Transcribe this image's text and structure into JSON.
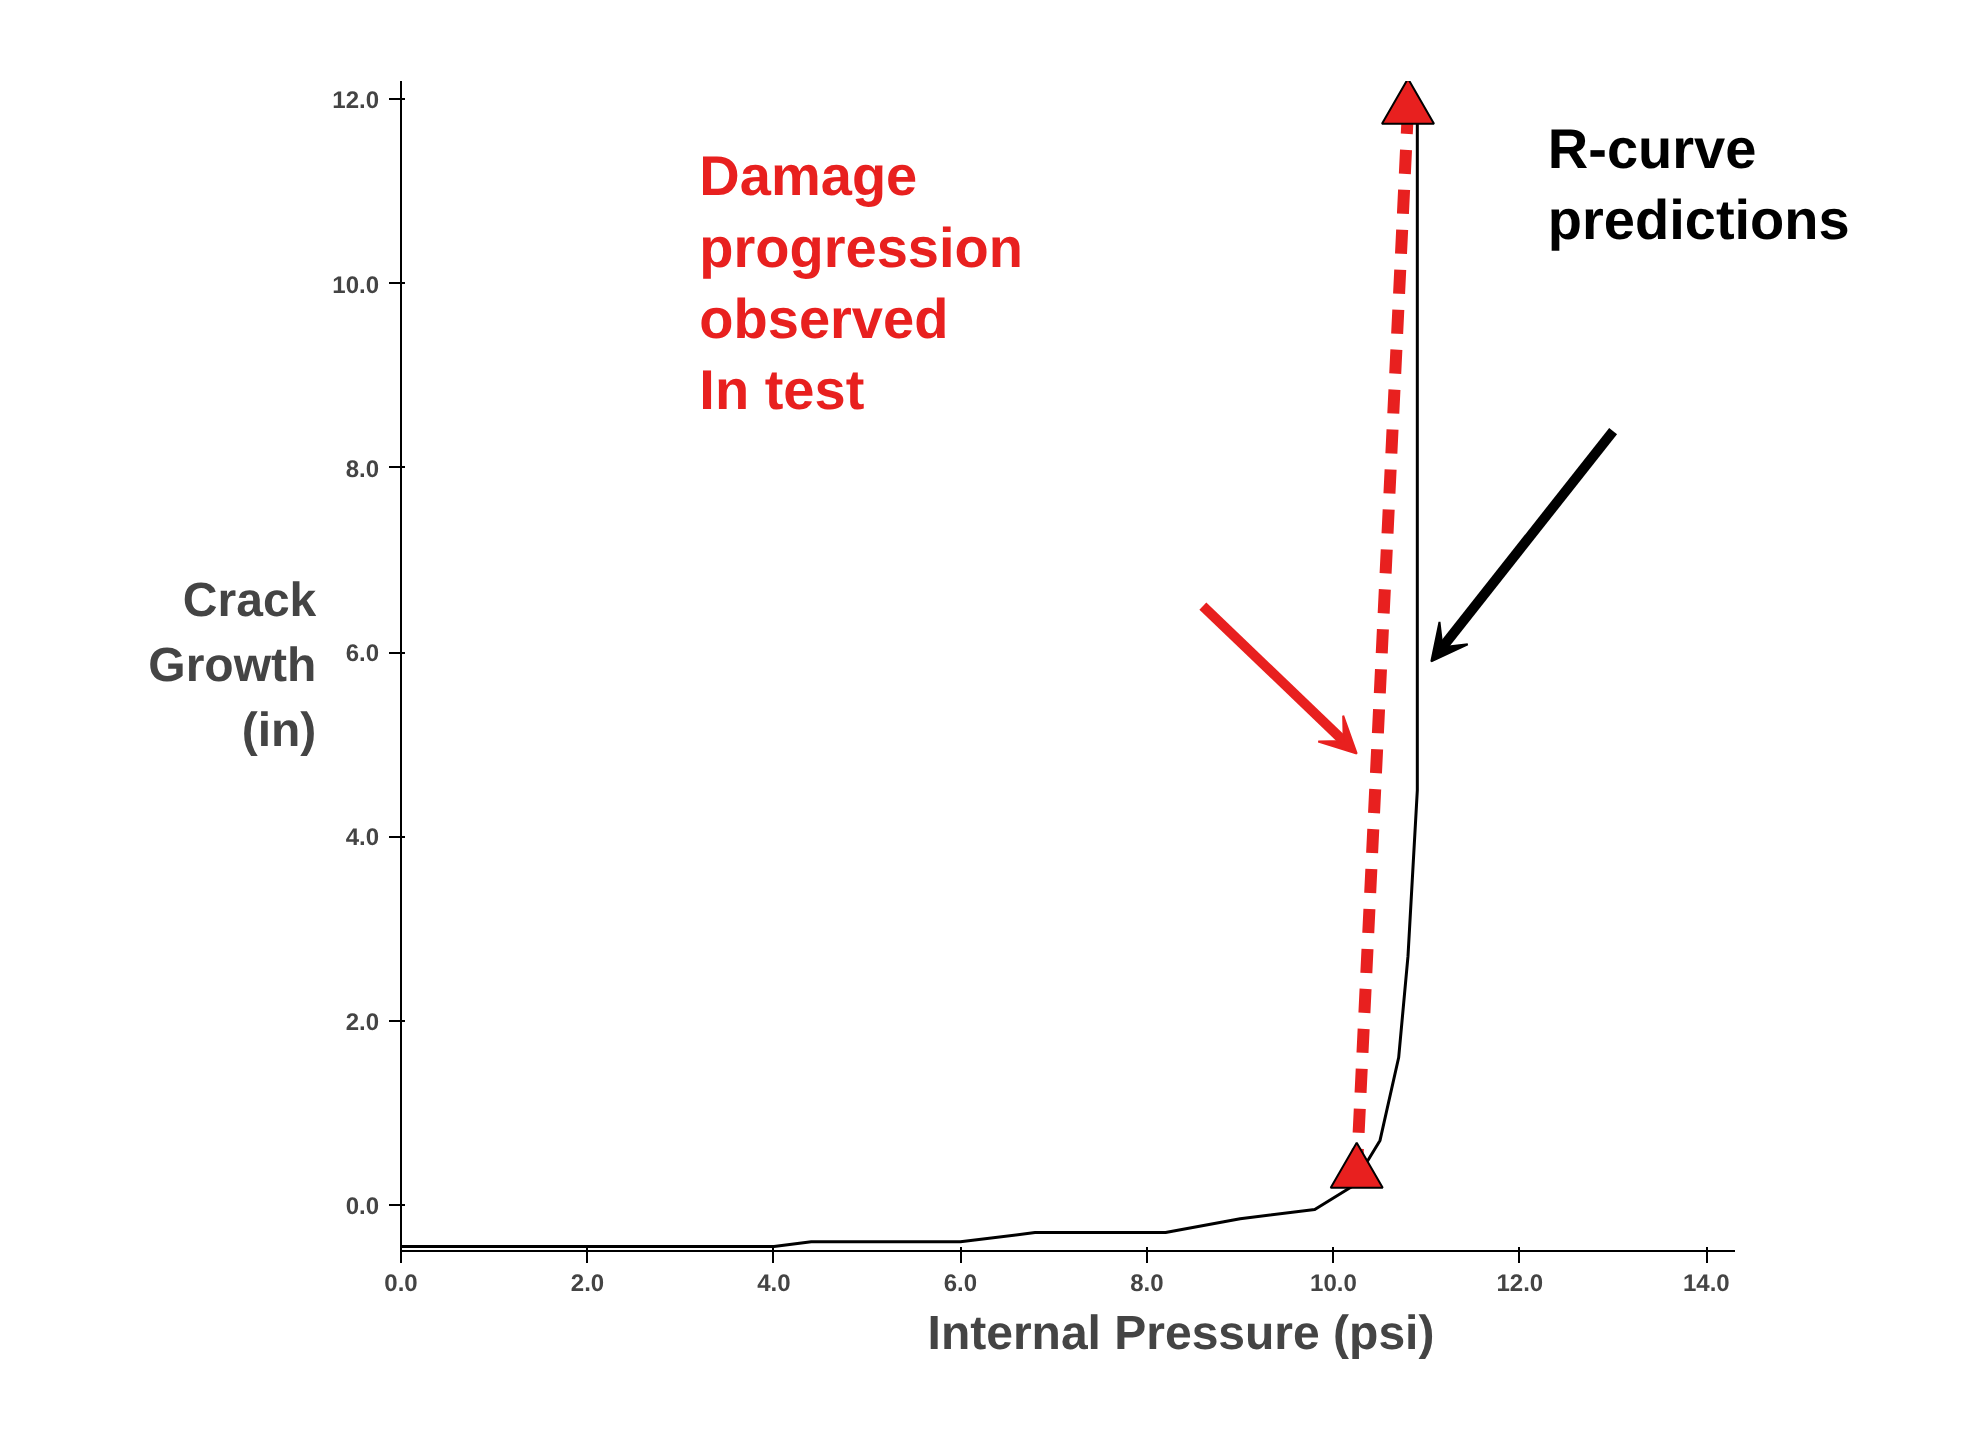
{
  "chart_data": {
    "type": "line",
    "xlabel": "Internal Pressure (psi)",
    "ylabel": "Crack\nGrowth\n(in)",
    "xlim": [
      0,
      14.3
    ],
    "ylim": [
      -0.5,
      12.2
    ],
    "xticks": [
      {
        "value": 0,
        "label": "0.0"
      },
      {
        "value": 2,
        "label": "2.0"
      },
      {
        "value": 4,
        "label": "4.0"
      },
      {
        "value": 6,
        "label": "6.0"
      },
      {
        "value": 8,
        "label": "8.0"
      },
      {
        "value": 10,
        "label": "10.0"
      },
      {
        "value": 12,
        "label": "12.0"
      },
      {
        "value": 14,
        "label": "14.0"
      }
    ],
    "yticks": [
      {
        "value": 0,
        "label": "0.0"
      },
      {
        "value": 2,
        "label": "2.0"
      },
      {
        "value": 4,
        "label": "4.0"
      },
      {
        "value": 6,
        "label": "6.0"
      },
      {
        "value": 8,
        "label": "8.0"
      },
      {
        "value": 10,
        "label": "10.0"
      },
      {
        "value": 12,
        "label": "12.0"
      }
    ],
    "grid": false,
    "series": [
      {
        "color": "#000000",
        "line_style": "solid",
        "marker": "none",
        "x": [
          0,
          4,
          4.4,
          6,
          6.8,
          8.2,
          9,
          9.8,
          10.2,
          10.5,
          10.7,
          10.8,
          10.9,
          10.9
        ],
        "values": [
          -0.45,
          -0.45,
          -0.4,
          -0.4,
          -0.3,
          -0.3,
          -0.15,
          -0.05,
          0.2,
          0.7,
          1.6,
          2.7,
          4.5,
          12.0
        ]
      },
      {
        "color": "#e8201f",
        "line_style": "dashed",
        "marker": "triangle",
        "x": [
          10.25,
          10.8
        ],
        "values": [
          0.35,
          11.9
        ]
      }
    ],
    "annotations": [
      "Damage\nprogression\nobserved\nIn test",
      "R-curve\npredictions"
    ]
  }
}
